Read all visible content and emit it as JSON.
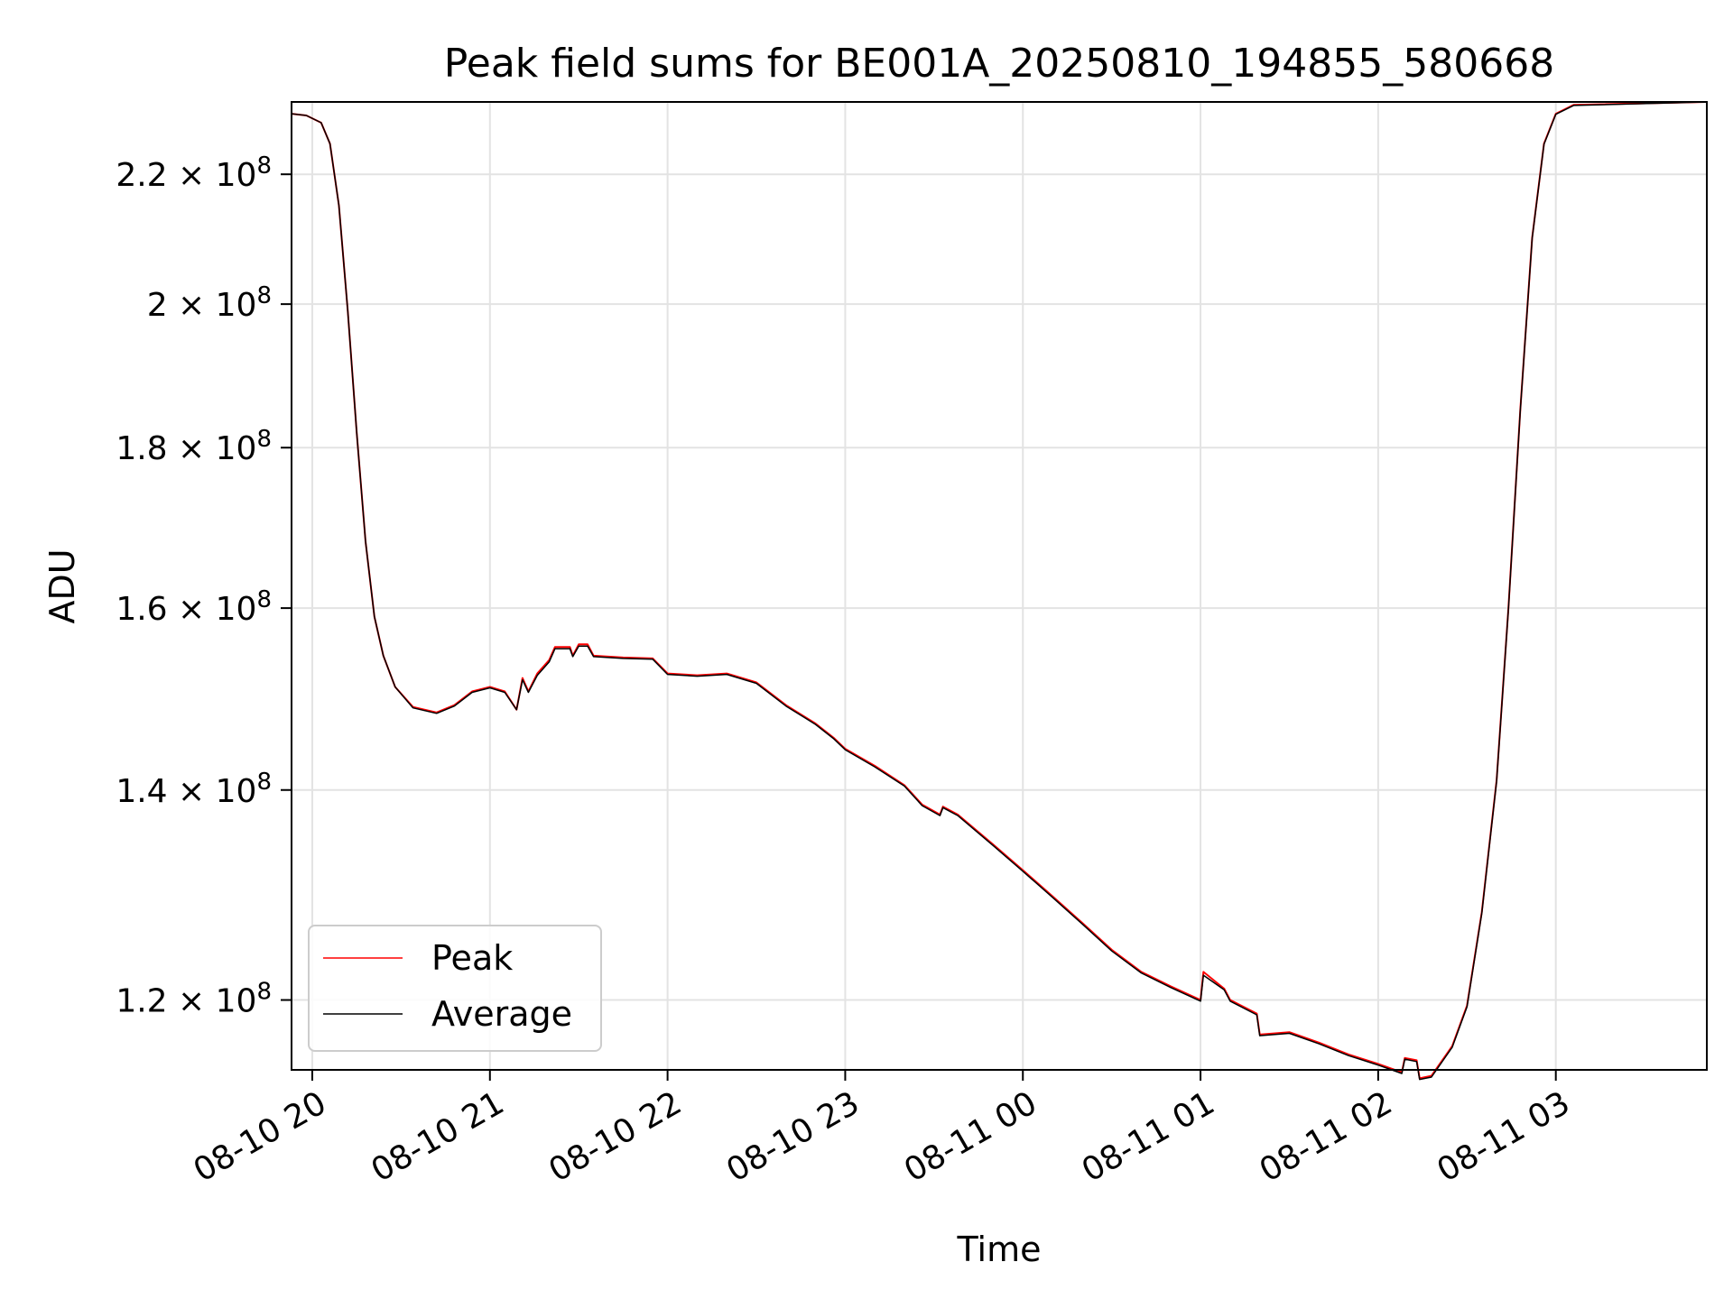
{
  "chart_data": {
    "type": "line",
    "title": "Peak field sums for BE001A_20250810_194855_580668",
    "xlabel": "Time",
    "ylabel": "ADU",
    "yscale": "log",
    "xlim": [
      "2025-08-10 19:53",
      "2025-08-11 03:51"
    ],
    "ylim": [
      114000000.0,
      232000000.0
    ],
    "x_ticks": [
      "08-10 20",
      "08-10 21",
      "08-10 22",
      "08-10 23",
      "08-11 00",
      "08-11 01",
      "08-11 02",
      "08-11 03"
    ],
    "y_ticks": [
      {
        "value": 220000000.0,
        "mantissa": "2.2",
        "times": "×",
        "base": "10",
        "exp": "8"
      },
      {
        "value": 200000000.0,
        "mantissa": "2",
        "times": "×",
        "base": "10",
        "exp": "8"
      },
      {
        "value": 180000000.0,
        "mantissa": "1.8",
        "times": "×",
        "base": "10",
        "exp": "8"
      },
      {
        "value": 160000000.0,
        "mantissa": "1.6",
        "times": "×",
        "base": "10",
        "exp": "8"
      },
      {
        "value": 140000000.0,
        "mantissa": "1.4",
        "times": "×",
        "base": "10",
        "exp": "8"
      },
      {
        "value": 120000000.0,
        "mantissa": "1.2",
        "times": "×",
        "base": "10",
        "exp": "8"
      }
    ],
    "grid": true,
    "legend_position": "lower-left",
    "series": [
      {
        "name": "Peak",
        "color": "#ff0000",
        "points": [
          [
            "2025-08-10 19:53",
            230000000.0
          ],
          [
            "2025-08-10 19:58",
            229700000.0
          ],
          [
            "2025-08-10 20:03",
            228500000.0
          ],
          [
            "2025-08-10 20:06",
            225000000.0
          ],
          [
            "2025-08-10 20:09",
            215000000.0
          ],
          [
            "2025-08-10 20:12",
            199000000.0
          ],
          [
            "2025-08-10 20:15",
            182000000.0
          ],
          [
            "2025-08-10 20:18",
            168000000.0
          ],
          [
            "2025-08-10 20:21",
            159000000.0
          ],
          [
            "2025-08-10 20:24",
            154500000.0
          ],
          [
            "2025-08-10 20:28",
            151000000.0
          ],
          [
            "2025-08-10 20:34",
            148800000.0
          ],
          [
            "2025-08-10 20:42",
            148200000.0
          ],
          [
            "2025-08-10 20:48",
            149000000.0
          ],
          [
            "2025-08-10 20:54",
            150500000.0
          ],
          [
            "2025-08-10 21:00",
            151000000.0
          ],
          [
            "2025-08-10 21:05",
            150500000.0
          ],
          [
            "2025-08-10 21:09",
            148500000.0
          ],
          [
            "2025-08-10 21:11",
            152000000.0
          ],
          [
            "2025-08-10 21:13",
            150500000.0
          ],
          [
            "2025-08-10 21:16",
            152500000.0
          ],
          [
            "2025-08-10 21:20",
            154000000.0
          ],
          [
            "2025-08-10 21:22",
            155500000.0
          ],
          [
            "2025-08-10 21:27",
            155500000.0
          ],
          [
            "2025-08-10 21:28",
            154500000.0
          ],
          [
            "2025-08-10 21:30",
            155800000.0
          ],
          [
            "2025-08-10 21:33",
            155800000.0
          ],
          [
            "2025-08-10 21:35",
            154500000.0
          ],
          [
            "2025-08-10 21:45",
            154300000.0
          ],
          [
            "2025-08-10 21:55",
            154200000.0
          ],
          [
            "2025-08-10 22:00",
            152500000.0
          ],
          [
            "2025-08-10 22:10",
            152300000.0
          ],
          [
            "2025-08-10 22:20",
            152500000.0
          ],
          [
            "2025-08-10 22:30",
            151500000.0
          ],
          [
            "2025-08-10 22:40",
            149000000.0
          ],
          [
            "2025-08-10 22:50",
            147000000.0
          ],
          [
            "2025-08-10 22:56",
            145500000.0
          ],
          [
            "2025-08-10 23:00",
            144300000.0
          ],
          [
            "2025-08-10 23:10",
            142500000.0
          ],
          [
            "2025-08-10 23:20",
            140500000.0
          ],
          [
            "2025-08-10 23:26",
            138500000.0
          ],
          [
            "2025-08-10 23:32",
            137500000.0
          ],
          [
            "2025-08-10 23:33",
            138300000.0
          ],
          [
            "2025-08-10 23:38",
            137500000.0
          ],
          [
            "2025-08-10 23:50",
            134500000.0
          ],
          [
            "2025-08-11 00:00",
            132000000.0
          ],
          [
            "2025-08-11 00:10",
            129500000.0
          ],
          [
            "2025-08-11 00:20",
            127000000.0
          ],
          [
            "2025-08-11 00:30",
            124500000.0
          ],
          [
            "2025-08-11 00:40",
            122500000.0
          ],
          [
            "2025-08-11 00:50",
            121200000.0
          ],
          [
            "2025-08-11 01:00",
            120000000.0
          ],
          [
            "2025-08-11 01:01",
            122500000.0
          ],
          [
            "2025-08-11 01:08",
            121000000.0
          ],
          [
            "2025-08-11 01:10",
            120000000.0
          ],
          [
            "2025-08-11 01:19",
            118800000.0
          ],
          [
            "2025-08-11 01:20",
            117000000.0
          ],
          [
            "2025-08-11 01:30",
            117200000.0
          ],
          [
            "2025-08-11 01:40",
            116300000.0
          ],
          [
            "2025-08-11 01:50",
            115300000.0
          ],
          [
            "2025-08-11 02:00",
            114500000.0
          ],
          [
            "2025-08-11 02:08",
            113800000.0
          ],
          [
            "2025-08-11 02:09",
            115000000.0
          ],
          [
            "2025-08-11 02:13",
            114800000.0
          ],
          [
            "2025-08-11 02:14",
            113300000.0
          ],
          [
            "2025-08-11 02:18",
            113500000.0
          ],
          [
            "2025-08-11 02:25",
            116000000.0
          ],
          [
            "2025-08-11 02:30",
            119500000.0
          ],
          [
            "2025-08-11 02:35",
            128000000.0
          ],
          [
            "2025-08-11 02:40",
            141000000.0
          ],
          [
            "2025-08-11 02:44",
            160000000.0
          ],
          [
            "2025-08-11 02:48",
            185000000.0
          ],
          [
            "2025-08-11 02:52",
            210000000.0
          ],
          [
            "2025-08-11 02:56",
            225000000.0
          ],
          [
            "2025-08-11 03:00",
            230000000.0
          ],
          [
            "2025-08-11 03:06",
            231500000.0
          ],
          [
            "2025-08-11 03:51",
            232000000.0
          ]
        ]
      },
      {
        "name": "Average",
        "color": "#000000",
        "points": [
          [
            "2025-08-10 19:53",
            230000000.0
          ],
          [
            "2025-08-10 19:58",
            229700000.0
          ],
          [
            "2025-08-10 20:03",
            228500000.0
          ],
          [
            "2025-08-10 20:06",
            225000000.0
          ],
          [
            "2025-08-10 20:09",
            215000000.0
          ],
          [
            "2025-08-10 20:12",
            199000000.0
          ],
          [
            "2025-08-10 20:15",
            182000000.0
          ],
          [
            "2025-08-10 20:18",
            168000000.0
          ],
          [
            "2025-08-10 20:21",
            159000000.0
          ],
          [
            "2025-08-10 20:24",
            154500000.0
          ],
          [
            "2025-08-10 20:28",
            151000000.0
          ],
          [
            "2025-08-10 20:34",
            148700000.0
          ],
          [
            "2025-08-10 20:42",
            148100000.0
          ],
          [
            "2025-08-10 20:48",
            148900000.0
          ],
          [
            "2025-08-10 20:54",
            150400000.0
          ],
          [
            "2025-08-10 21:00",
            150900000.0
          ],
          [
            "2025-08-10 21:05",
            150400000.0
          ],
          [
            "2025-08-10 21:09",
            148500000.0
          ],
          [
            "2025-08-10 21:11",
            151800000.0
          ],
          [
            "2025-08-10 21:13",
            150400000.0
          ],
          [
            "2025-08-10 21:16",
            152300000.0
          ],
          [
            "2025-08-10 21:20",
            153800000.0
          ],
          [
            "2025-08-10 21:22",
            155300000.0
          ],
          [
            "2025-08-10 21:27",
            155300000.0
          ],
          [
            "2025-08-10 21:28",
            154400000.0
          ],
          [
            "2025-08-10 21:30",
            155600000.0
          ],
          [
            "2025-08-10 21:33",
            155600000.0
          ],
          [
            "2025-08-10 21:35",
            154400000.0
          ],
          [
            "2025-08-10 21:45",
            154200000.0
          ],
          [
            "2025-08-10 21:55",
            154100000.0
          ],
          [
            "2025-08-10 22:00",
            152400000.0
          ],
          [
            "2025-08-10 22:10",
            152200000.0
          ],
          [
            "2025-08-10 22:20",
            152400000.0
          ],
          [
            "2025-08-10 22:30",
            151400000.0
          ],
          [
            "2025-08-10 22:40",
            148900000.0
          ],
          [
            "2025-08-10 22:50",
            146900000.0
          ],
          [
            "2025-08-10 22:56",
            145400000.0
          ],
          [
            "2025-08-10 23:00",
            144200000.0
          ],
          [
            "2025-08-10 23:10",
            142400000.0
          ],
          [
            "2025-08-10 23:20",
            140400000.0
          ],
          [
            "2025-08-10 23:26",
            138400000.0
          ],
          [
            "2025-08-10 23:32",
            137400000.0
          ],
          [
            "2025-08-10 23:33",
            138200000.0
          ],
          [
            "2025-08-10 23:38",
            137400000.0
          ],
          [
            "2025-08-10 23:50",
            134400000.0
          ],
          [
            "2025-08-11 00:00",
            131900000.0
          ],
          [
            "2025-08-11 00:10",
            129400000.0
          ],
          [
            "2025-08-11 00:20",
            126900000.0
          ],
          [
            "2025-08-11 00:30",
            124400000.0
          ],
          [
            "2025-08-11 00:40",
            122400000.0
          ],
          [
            "2025-08-11 00:50",
            121100000.0
          ],
          [
            "2025-08-11 01:00",
            119900000.0
          ],
          [
            "2025-08-11 01:01",
            122200000.0
          ],
          [
            "2025-08-11 01:08",
            120900000.0
          ],
          [
            "2025-08-11 01:10",
            119900000.0
          ],
          [
            "2025-08-11 01:19",
            118700000.0
          ],
          [
            "2025-08-11 01:20",
            116900000.0
          ],
          [
            "2025-08-11 01:30",
            117100000.0
          ],
          [
            "2025-08-11 01:40",
            116200000.0
          ],
          [
            "2025-08-11 01:50",
            115200000.0
          ],
          [
            "2025-08-11 02:00",
            114400000.0
          ],
          [
            "2025-08-11 02:08",
            113700000.0
          ],
          [
            "2025-08-11 02:09",
            114900000.0
          ],
          [
            "2025-08-11 02:13",
            114700000.0
          ],
          [
            "2025-08-11 02:14",
            113200000.0
          ],
          [
            "2025-08-11 02:18",
            113400000.0
          ],
          [
            "2025-08-11 02:25",
            115900000.0
          ],
          [
            "2025-08-11 02:30",
            119400000.0
          ],
          [
            "2025-08-11 02:35",
            127900000.0
          ],
          [
            "2025-08-11 02:40",
            140900000.0
          ],
          [
            "2025-08-11 02:44",
            159900000.0
          ],
          [
            "2025-08-11 02:48",
            184900000.0
          ],
          [
            "2025-08-11 02:52",
            209900000.0
          ],
          [
            "2025-08-11 02:56",
            224900000.0
          ],
          [
            "2025-08-11 03:00",
            229900000.0
          ],
          [
            "2025-08-11 03:06",
            231400000.0
          ],
          [
            "2025-08-11 03:51",
            232000000.0
          ]
        ]
      }
    ]
  }
}
